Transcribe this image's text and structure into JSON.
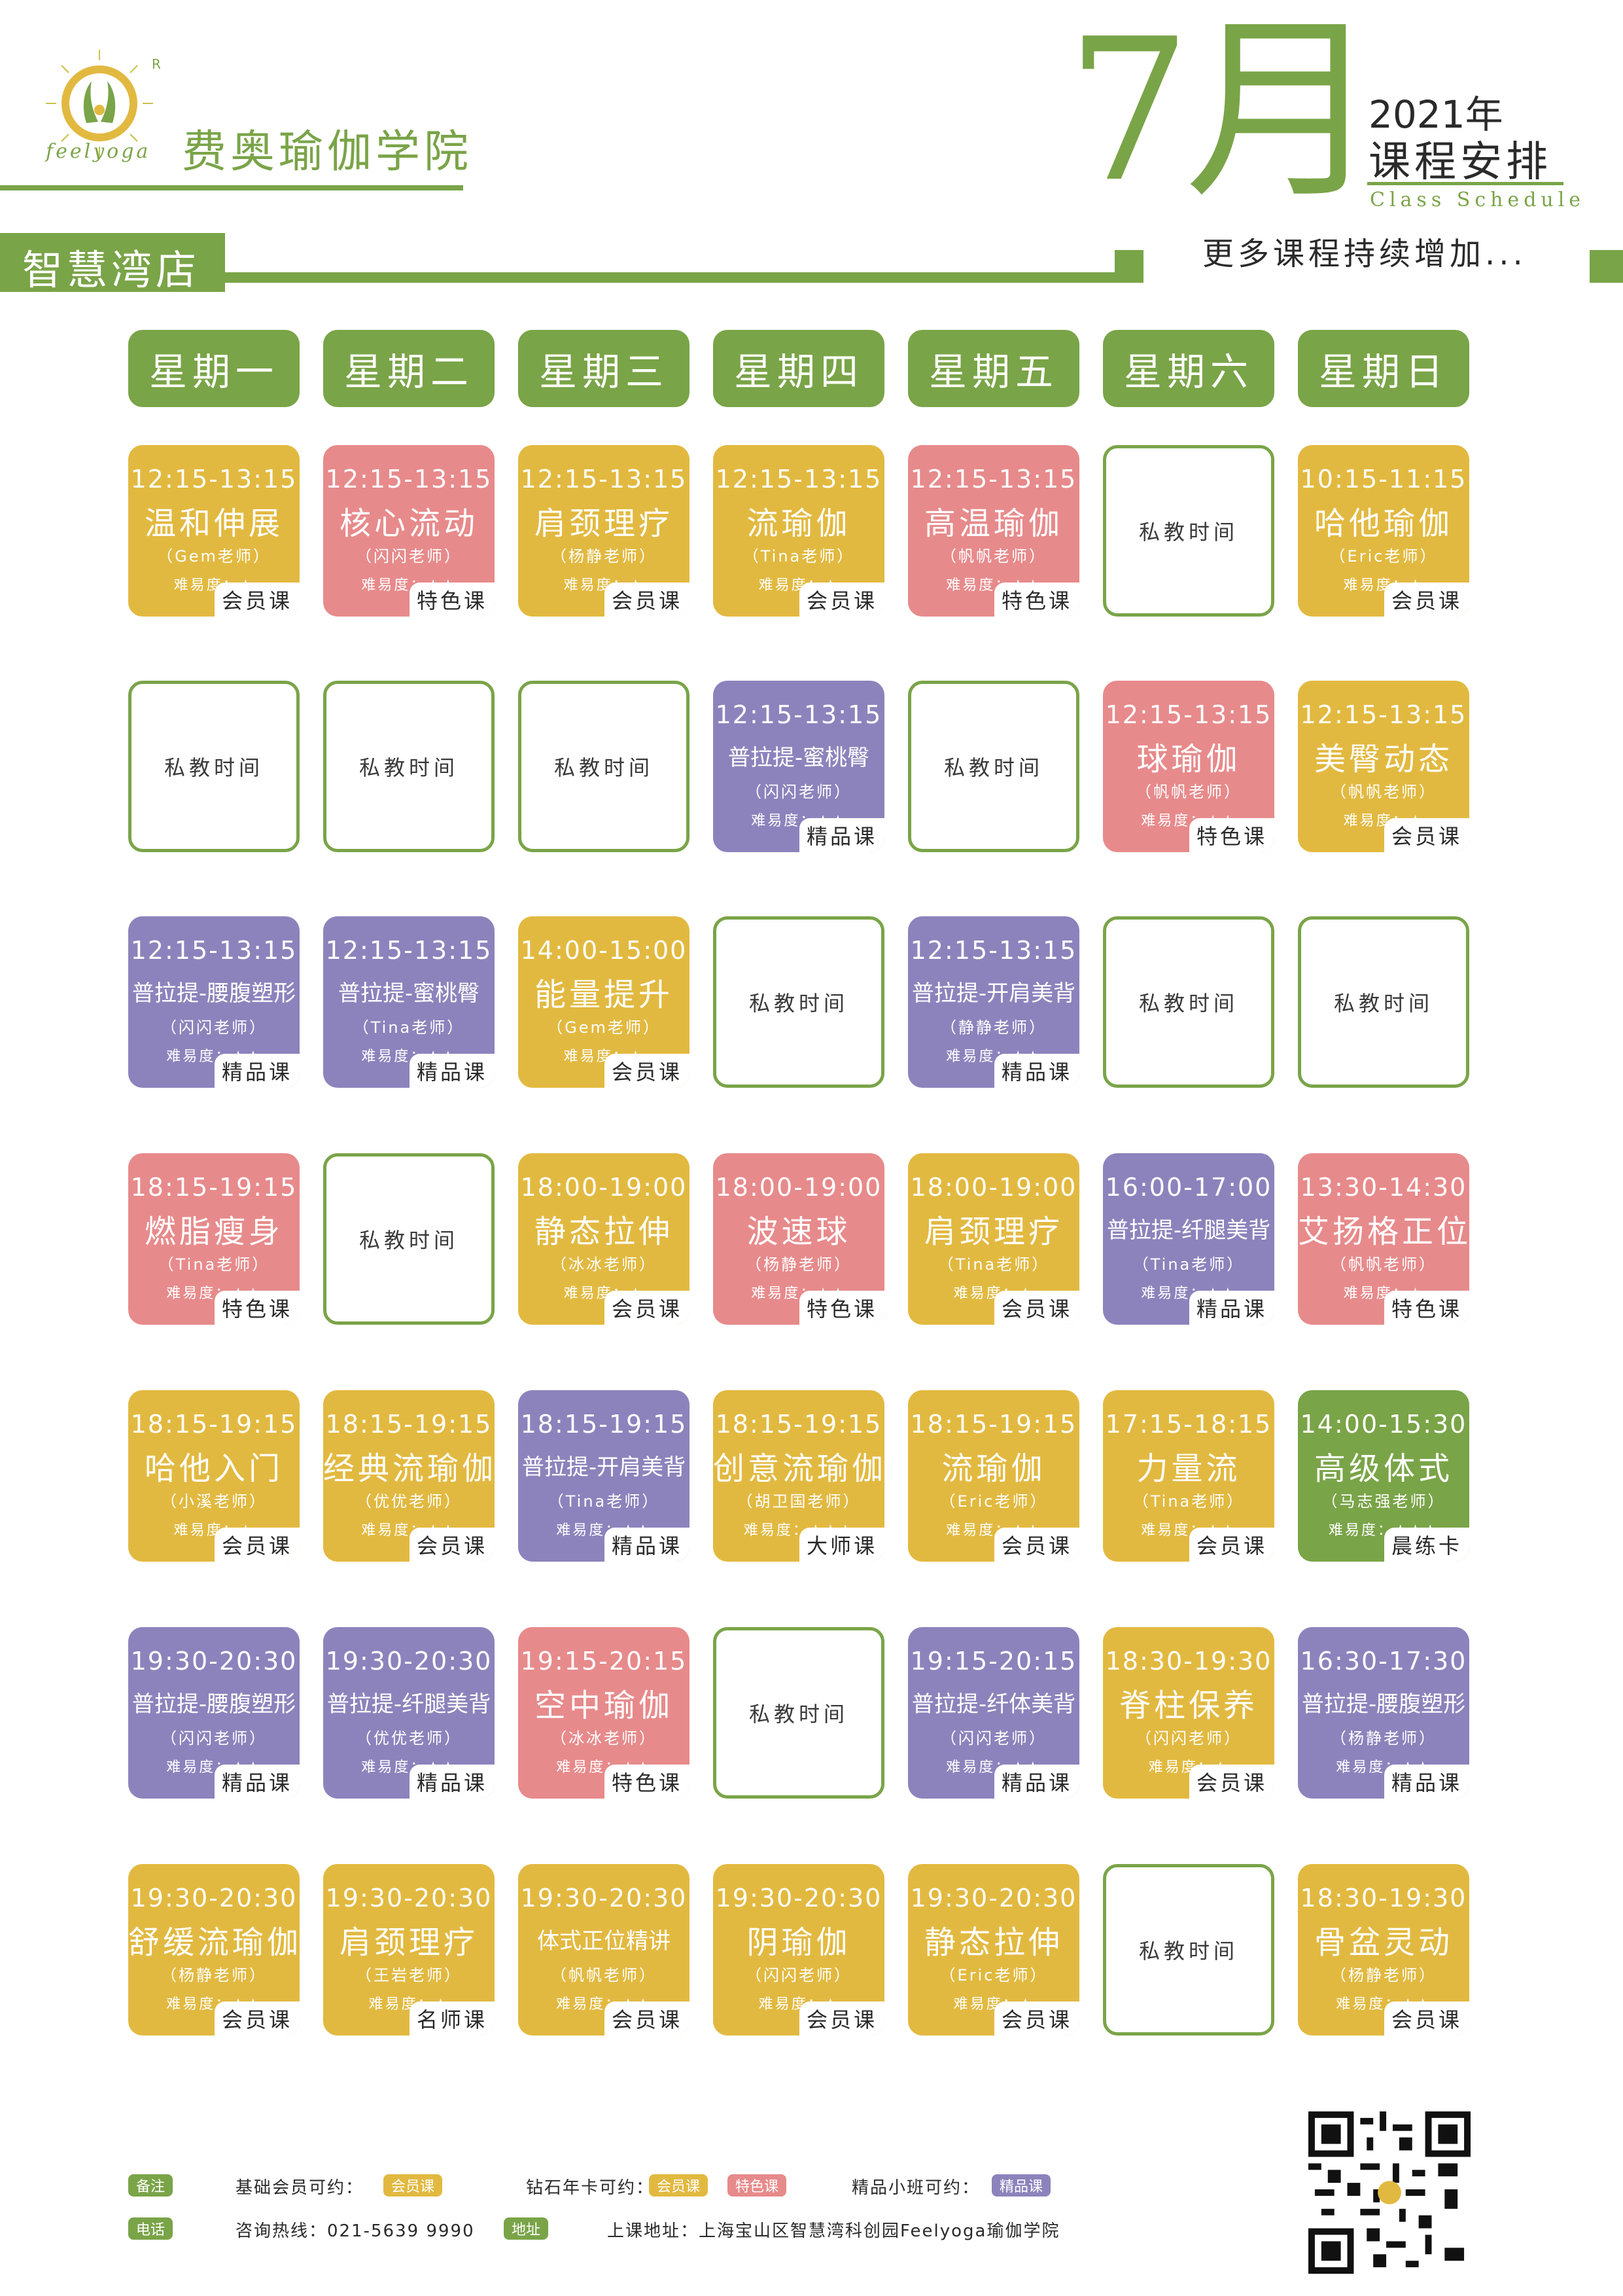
{
  "header": {
    "logo_text": "feelyoga",
    "registered_mark": "R",
    "school_name": "费奥瑜伽学院",
    "month": "7月",
    "year": "2021年",
    "schedule_title": "课程安排",
    "schedule_en": "Class Schedule",
    "store_name": "智慧湾店",
    "more_courses": "更多课程持续增加..."
  },
  "colors": {
    "green": "#7aa448",
    "yellow": "#e2b940",
    "pink": "#e78a8b",
    "purple": "#8d83bc"
  },
  "days": [
    "星期一",
    "星期二",
    "星期三",
    "星期四",
    "星期五",
    "星期六",
    "星期日"
  ],
  "private_label": "私教时间",
  "difficulty_prefix": "难易度：",
  "rows": [
    [
      {
        "time": "12:15-13:15",
        "title": "温和伸展",
        "teacher": "（Gem老师）",
        "stars": "★",
        "tag": "会员课",
        "color": "yellow"
      },
      {
        "time": "12:15-13:15",
        "title": "核心流动",
        "teacher": "（闪闪老师）",
        "stars": "★★",
        "tag": "特色课",
        "color": "pink"
      },
      {
        "time": "12:15-13:15",
        "title": "肩颈理疗",
        "teacher": "（杨静老师）",
        "stars": "★",
        "tag": "会员课",
        "color": "yellow"
      },
      {
        "time": "12:15-13:15",
        "title": "流瑜伽",
        "teacher": "（Tina老师）",
        "stars": "★",
        "tag": "会员课",
        "color": "yellow"
      },
      {
        "time": "12:15-13:15",
        "title": "高温瑜伽",
        "teacher": "（帆帆老师）",
        "stars": "★★",
        "tag": "特色课",
        "color": "pink"
      },
      {
        "private": true
      },
      {
        "time": "10:15-11:15",
        "title": "哈他瑜伽",
        "teacher": "（Eric老师）",
        "stars": "★",
        "tag": "会员课",
        "color": "yellow"
      }
    ],
    [
      {
        "private": true
      },
      {
        "private": true
      },
      {
        "private": true
      },
      {
        "time": "12:15-13:15",
        "title": "普拉提-蜜桃臀",
        "teacher": "（闪闪老师）",
        "stars": "★★",
        "tag": "精品课",
        "color": "purple",
        "small": true
      },
      {
        "private": true
      },
      {
        "time": "12:15-13:15",
        "title": "球瑜伽",
        "teacher": "（帆帆老师）",
        "stars": "★★",
        "tag": "特色课",
        "color": "pink"
      },
      {
        "time": "12:15-13:15",
        "title": "美臀动态",
        "teacher": "（帆帆老师）",
        "stars": "★",
        "tag": "会员课",
        "color": "yellow"
      }
    ],
    [
      {
        "time": "12:15-13:15",
        "title": "普拉提-腰腹塑形",
        "teacher": "（闪闪老师）",
        "stars": "★★",
        "tag": "精品课",
        "color": "purple",
        "small": true
      },
      {
        "time": "12:15-13:15",
        "title": "普拉提-蜜桃臀",
        "teacher": "（Tina老师）",
        "stars": "★★",
        "tag": "精品课",
        "color": "purple",
        "small": true
      },
      {
        "time": "14:00-15:00",
        "title": "能量提升",
        "teacher": "（Gem老师）",
        "stars": "★",
        "tag": "会员课",
        "color": "yellow"
      },
      {
        "private": true
      },
      {
        "time": "12:15-13:15",
        "title": "普拉提-开肩美背",
        "teacher": "（静静老师）",
        "stars": "★★",
        "tag": "精品课",
        "color": "purple",
        "small": true
      },
      {
        "private": true
      },
      {
        "private": true
      }
    ],
    [
      {
        "time": "18:15-19:15",
        "title": "燃脂瘦身",
        "teacher": "（Tina老师）",
        "stars": "★★",
        "tag": "特色课",
        "color": "pink"
      },
      {
        "private": true
      },
      {
        "time": "18:00-19:00",
        "title": "静态拉伸",
        "teacher": "（冰冰老师）",
        "stars": "★",
        "tag": "会员课",
        "color": "yellow"
      },
      {
        "time": "18:00-19:00",
        "title": "波速球",
        "teacher": "（杨静老师）",
        "stars": "★★",
        "tag": "特色课",
        "color": "pink"
      },
      {
        "time": "18:00-19:00",
        "title": "肩颈理疗",
        "teacher": "（Tina老师）",
        "stars": "★",
        "tag": "会员课",
        "color": "yellow"
      },
      {
        "time": "16:00-17:00",
        "title": "普拉提-纤腿美背",
        "teacher": "（Tina老师）",
        "stars": "★★",
        "tag": "精品课",
        "color": "purple",
        "small": true
      },
      {
        "time": "13:30-14:30",
        "title": "艾扬格正位",
        "teacher": "（帆帆老师）",
        "stars": "★",
        "tag": "特色课",
        "color": "pink"
      }
    ],
    [
      {
        "time": "18:15-19:15",
        "title": "哈他入门",
        "teacher": "（小溪老师）",
        "stars": "★",
        "tag": "会员课",
        "color": "yellow"
      },
      {
        "time": "18:15-19:15",
        "title": "经典流瑜伽",
        "teacher": "（优优老师）",
        "stars": "★★",
        "tag": "会员课",
        "color": "yellow"
      },
      {
        "time": "18:15-19:15",
        "title": "普拉提-开肩美背",
        "teacher": "（Tina老师）",
        "stars": "★★",
        "tag": "精品课",
        "color": "purple",
        "small": true
      },
      {
        "time": "18:15-19:15",
        "title": "创意流瑜伽",
        "teacher": "（胡卫国老师）",
        "stars": "★★★",
        "tag": "大师课",
        "color": "yellow"
      },
      {
        "time": "18:15-19:15",
        "title": "流瑜伽",
        "teacher": "（Eric老师）",
        "stars": "★★",
        "tag": "会员课",
        "color": "yellow"
      },
      {
        "time": "17:15-18:15",
        "title": "力量流",
        "teacher": "（Tina老师）",
        "stars": "★★",
        "tag": "会员课",
        "color": "yellow"
      },
      {
        "time": "14:00-15:30",
        "title": "高级体式",
        "teacher": "（马志强老师）",
        "stars": "★★★",
        "tag": "晨练卡",
        "color": "green"
      }
    ],
    [
      {
        "time": "19:30-20:30",
        "title": "普拉提-腰腹塑形",
        "teacher": "（闪闪老师）",
        "stars": "★★",
        "tag": "精品课",
        "color": "purple",
        "small": true
      },
      {
        "time": "19:30-20:30",
        "title": "普拉提-纤腿美背",
        "teacher": "（优优老师）",
        "stars": "★★",
        "tag": "精品课",
        "color": "purple",
        "small": true
      },
      {
        "time": "19:15-20:15",
        "title": "空中瑜伽",
        "teacher": "（冰冰老师）",
        "stars": "★★",
        "tag": "特色课",
        "color": "pink"
      },
      {
        "private": true
      },
      {
        "time": "19:15-20:15",
        "title": "普拉提-纤体美背",
        "teacher": "（闪闪老师）",
        "stars": "★★",
        "tag": "精品课",
        "color": "purple",
        "small": true
      },
      {
        "time": "18:30-19:30",
        "title": "脊柱保养",
        "teacher": "（闪闪老师）",
        "stars": "★",
        "tag": "会员课",
        "color": "yellow"
      },
      {
        "time": "16:30-17:30",
        "title": "普拉提-腰腹塑形",
        "teacher": "（杨静老师）",
        "stars": "★★",
        "tag": "精品课",
        "color": "purple",
        "small": true
      }
    ],
    [
      {
        "time": "19:30-20:30",
        "title": "舒缓流瑜伽",
        "teacher": "（杨静老师）",
        "stars": "★★",
        "tag": "会员课",
        "color": "yellow"
      },
      {
        "time": "19:30-20:30",
        "title": "肩颈理疗",
        "teacher": "（王岩老师）",
        "stars": "★",
        "tag": "名师课",
        "color": "yellow"
      },
      {
        "time": "19:30-20:30",
        "title": "体式正位精讲",
        "teacher": "（帆帆老师）",
        "stars": "★★",
        "tag": "会员课",
        "color": "yellow",
        "small": true
      },
      {
        "time": "19:30-20:30",
        "title": "阴瑜伽",
        "teacher": "（闪闪老师）",
        "stars": "★",
        "tag": "会员课",
        "color": "yellow"
      },
      {
        "time": "19:30-20:30",
        "title": "静态拉伸",
        "teacher": "（Eric老师）",
        "stars": "★",
        "tag": "会员课",
        "color": "yellow"
      },
      {
        "private": true
      },
      {
        "time": "18:30-19:30",
        "title": "骨盆灵动",
        "teacher": "（杨静老师）",
        "stars": "★★",
        "tag": "会员课",
        "color": "yellow"
      }
    ]
  ],
  "footer": {
    "note_label": "备注",
    "basic_member": "基础会员可约：",
    "basic_chip": "会员课",
    "diamond_member": "钻石年卡可约：",
    "diamond_chip1": "会员课",
    "diamond_chip2": "特色课",
    "premium_member": "精品小班可约：",
    "premium_chip": "精品课",
    "phone_label": "电话",
    "phone_text": "咨询热线：021-5639 9990",
    "address_label": "地址",
    "address_text": "上课地址：上海宝山区智慧湾科创园Feelyoga瑜伽学院"
  }
}
